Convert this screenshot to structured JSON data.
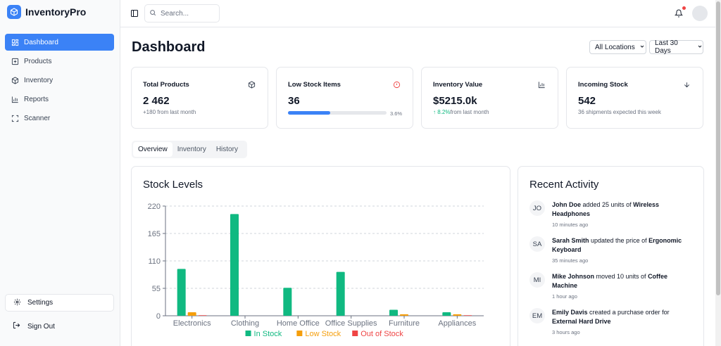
{
  "app": {
    "name": "InventoryPro",
    "accent": "#3b82f6"
  },
  "sidebar": {
    "items": [
      {
        "label": "Dashboard",
        "icon": "dashboard-grid-icon",
        "active": true
      },
      {
        "label": "Products",
        "icon": "plus-square-icon",
        "active": false
      },
      {
        "label": "Inventory",
        "icon": "box-icon",
        "active": false
      },
      {
        "label": "Reports",
        "icon": "bar-chart-icon",
        "active": false
      },
      {
        "label": "Scanner",
        "icon": "scan-icon",
        "active": false
      }
    ],
    "settings_label": "Settings",
    "signout_label": "Sign Out"
  },
  "topbar": {
    "search_placeholder": "Search...",
    "notification_dot_color": "#ef4444"
  },
  "header": {
    "title": "Dashboard",
    "location_filter": "All Locations",
    "date_filter": "Last 30 Days"
  },
  "stats": [
    {
      "label": "Total Products",
      "value": "2 462",
      "sub": "+180 from last month",
      "icon": "box-icon"
    },
    {
      "label": "Low Stock Items",
      "value": "36",
      "progress": 0.036,
      "progress_label": "3.6%",
      "icon": "alert-circle-icon"
    },
    {
      "label": "Inventory Value",
      "value": "$5215.0k",
      "trend": "8.2%",
      "sub": "from last month",
      "icon": "bar-chart-icon"
    },
    {
      "label": "Incoming Stock",
      "value": "542",
      "sub": "36 shipments expected this week",
      "icon": "arrow-down-icon"
    }
  ],
  "tabs": [
    {
      "label": "Overview",
      "active": true
    },
    {
      "label": "Inventory",
      "active": false
    },
    {
      "label": "History",
      "active": false
    }
  ],
  "stock_panel": {
    "title": "Stock Levels"
  },
  "chart_data": {
    "type": "bar",
    "categories": [
      "Electronics",
      "Clothing",
      "Home Office",
      "Office Supplies",
      "Furniture",
      "Appliances"
    ],
    "series": [
      {
        "name": "In Stock",
        "color": "#10b981",
        "values": [
          94,
          204,
          56,
          88,
          12,
          7
        ]
      },
      {
        "name": "Low Stock",
        "color": "#f59e0b",
        "values": [
          7,
          0,
          0,
          0,
          3,
          3
        ]
      },
      {
        "name": "Out of Stock",
        "color": "#ef4444",
        "values": [
          1,
          0,
          0,
          0,
          0,
          1
        ]
      }
    ],
    "ylim": [
      0,
      220
    ],
    "yticks": [
      "0",
      "55",
      "110",
      "165",
      "220"
    ],
    "grid": true,
    "legend": "bottom"
  },
  "activity_panel": {
    "title": "Recent Activity",
    "items": [
      {
        "initials": "JO",
        "user": "John Doe",
        "action": " added 25 units of ",
        "target": "Wireless Headphones",
        "time": "10 minutes ago"
      },
      {
        "initials": "SA",
        "user": "Sarah Smith",
        "action": " updated the price of ",
        "target": "Ergonomic Keyboard",
        "time": "35 minutes ago"
      },
      {
        "initials": "MI",
        "user": "Mike Johnson",
        "action": " moved 10 units of ",
        "target": "Coffee Machine",
        "time": "1 hour ago"
      },
      {
        "initials": "EM",
        "user": "Emily Davis",
        "action": " created a purchase order for ",
        "target": "External Hard Drive",
        "time": "3 hours ago"
      }
    ]
  }
}
